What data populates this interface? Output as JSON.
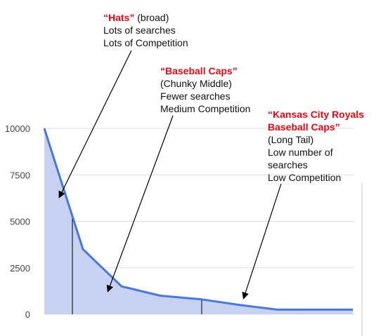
{
  "chart_data": {
    "type": "area",
    "x": [
      0,
      1,
      2,
      3,
      4,
      5,
      6,
      7,
      8
    ],
    "values": [
      10000,
      3500,
      1500,
      1000,
      800,
      500,
      250,
      250,
      250
    ],
    "ylim": [
      0,
      10000
    ],
    "y_ticks": [
      "10000",
      "7500",
      "5000",
      "2500",
      "0"
    ],
    "grid": true,
    "colors": {
      "line": "#4a78d9",
      "fill": "#c7d1f2",
      "grid": "#dddddd",
      "annotation_title": "#e30b17"
    },
    "annotations": [
      {
        "id": "hats",
        "title": "“Hats”",
        "title_suffix": " (broad)",
        "lines": [
          "Lots of searches",
          "Lots of Competition"
        ]
      },
      {
        "id": "baseball-caps",
        "title": "“Baseball Caps”",
        "title_suffix": "",
        "lines": [
          "(Chunky Middle)",
          "Fewer searches",
          "Medium Competition"
        ]
      },
      {
        "id": "kc-royals",
        "title_lines": [
          "“Kansas City Royals",
          "Baseball Caps”"
        ],
        "lines": [
          "(Long Tail)",
          "Low number of",
          "searches",
          "Low Competition"
        ]
      }
    ]
  }
}
